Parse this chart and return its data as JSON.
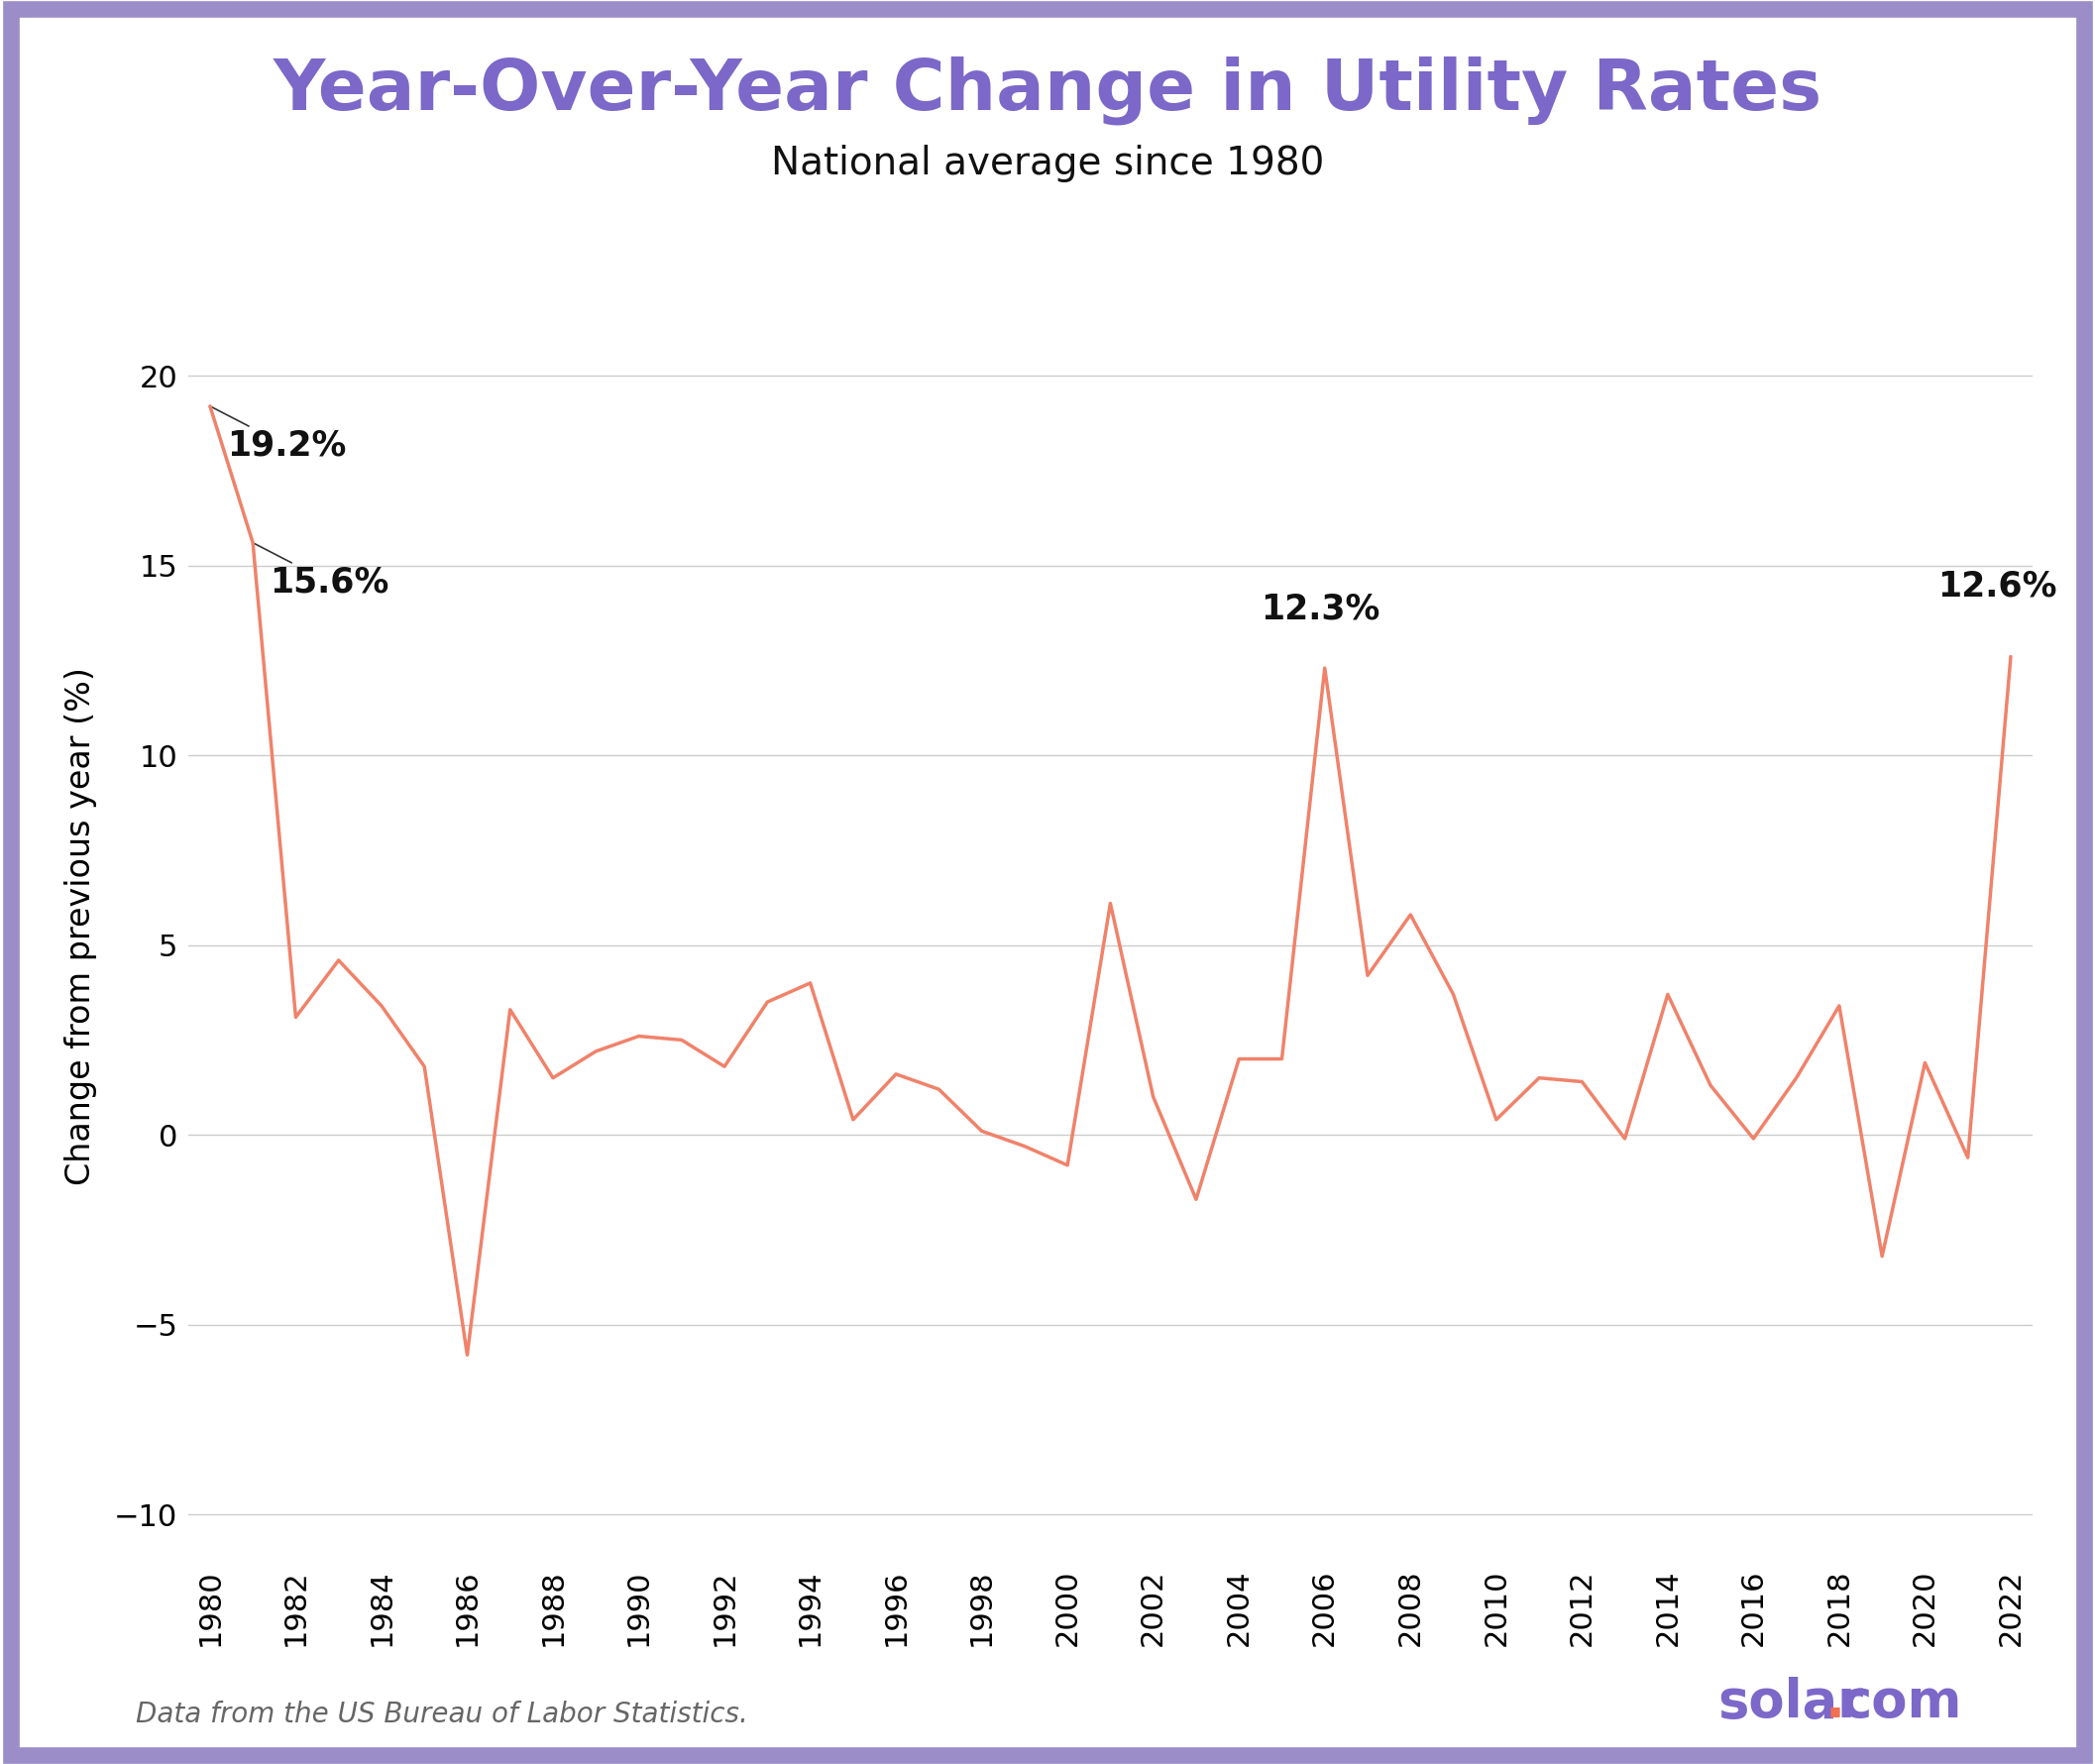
{
  "title": "Year-Over-Year Change in Utility Rates",
  "subtitle": "National average since 1980",
  "ylabel": "Change from previous year (%)",
  "footer_left": "Data from the US Bureau of Labor Statistics.",
  "title_color": "#7B68C8",
  "line_color": "#F0826A",
  "background_color": "#FFFFFF",
  "border_color": "#9B8DC8",
  "grid_color": "#CCCCCC",
  "years": [
    1980,
    1981,
    1982,
    1983,
    1984,
    1985,
    1986,
    1987,
    1988,
    1989,
    1990,
    1991,
    1992,
    1993,
    1994,
    1995,
    1996,
    1997,
    1998,
    1999,
    2000,
    2001,
    2002,
    2003,
    2004,
    2005,
    2006,
    2007,
    2008,
    2009,
    2010,
    2011,
    2012,
    2013,
    2014,
    2015,
    2016,
    2017,
    2018,
    2019,
    2020,
    2021,
    2022
  ],
  "values": [
    19.2,
    15.6,
    3.1,
    4.6,
    3.4,
    1.8,
    -5.8,
    3.3,
    1.5,
    2.2,
    2.6,
    2.5,
    1.8,
    3.5,
    4.0,
    0.4,
    1.6,
    1.2,
    0.1,
    -0.3,
    -0.8,
    6.1,
    1.0,
    -1.7,
    2.0,
    2.0,
    12.3,
    4.2,
    5.8,
    3.7,
    0.4,
    1.5,
    1.4,
    -0.1,
    3.7,
    1.3,
    -0.1,
    1.5,
    3.4,
    -3.2,
    1.9,
    -0.6,
    12.6
  ],
  "ylim": [
    -11,
    22
  ],
  "yticks": [
    -10,
    -5,
    0,
    5,
    10,
    15,
    20
  ],
  "title_fontsize": 52,
  "subtitle_fontsize": 28,
  "ylabel_fontsize": 24,
  "tick_fontsize": 22,
  "annotation_fontsize": 25,
  "footer_fontsize": 20,
  "logo_fontsize": 38
}
